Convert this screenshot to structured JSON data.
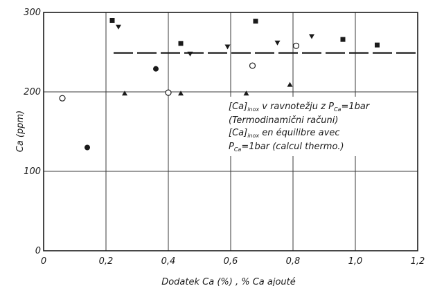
{
  "chart_data": {
    "type": "scatter",
    "xlabel": "Dodatek  Ca (%) ,  % Ca  ajouté",
    "ylabel": "Ca (ppm)",
    "xlim": [
      0,
      1.2
    ],
    "ylim": [
      0,
      300
    ],
    "x_ticks": [
      "0",
      "0,2",
      "0,4",
      "0,6",
      "0,8",
      "1,0",
      "1,2"
    ],
    "y_ticks": [
      "0",
      "100",
      "200",
      "300"
    ],
    "grid": true,
    "series": [
      {
        "marker": "open-circle",
        "points": [
          [
            0.06,
            192
          ],
          [
            0.4,
            199
          ],
          [
            0.67,
            233
          ],
          [
            0.81,
            258
          ]
        ]
      },
      {
        "marker": "filled-circle",
        "points": [
          [
            0.14,
            130
          ],
          [
            0.36,
            229
          ]
        ]
      },
      {
        "marker": "filled-triangle-up",
        "points": [
          [
            0.26,
            198
          ],
          [
            0.44,
            198
          ],
          [
            0.65,
            198
          ],
          [
            0.79,
            209
          ]
        ]
      },
      {
        "marker": "filled-triangle-down",
        "points": [
          [
            0.24,
            282
          ],
          [
            0.47,
            248
          ],
          [
            0.59,
            257
          ],
          [
            0.75,
            262
          ],
          [
            0.86,
            270
          ]
        ]
      },
      {
        "marker": "filled-square",
        "points": [
          [
            0.22,
            290
          ],
          [
            0.44,
            261
          ],
          [
            0.68,
            289
          ],
          [
            0.96,
            266
          ],
          [
            1.07,
            259
          ]
        ]
      }
    ],
    "reference_line": {
      "style": "dashed",
      "y": 249,
      "x_range": [
        0.22,
        1.2
      ]
    },
    "annotation": {
      "line1_main": "[Ca]",
      "line1_sub": "inox",
      "line1_rest": " v ravnotežju z P",
      "line1_sub2": "Ca",
      "line1_end": "=1bar",
      "line2": "(Termodinamični računi)",
      "line3_main": "[Ca]",
      "line3_sub": "inox",
      "line3_rest": " en équilibre avec",
      "line4_main": "P",
      "line4_sub": "Ca",
      "line4_rest": "=1bar (calcul thermo.)"
    }
  }
}
